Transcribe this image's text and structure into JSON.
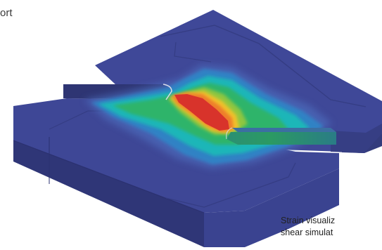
{
  "fragment_text": "ort",
  "caption": {
    "line1": "Strain visualiz",
    "line2": "shear simulat"
  },
  "colors": {
    "plate_top": "#3e4796",
    "plate_side": "#343c80",
    "plate_front": "#3a4390",
    "contour_blue": "#2f86c7",
    "contour_cyan": "#1cb6b8",
    "contour_green": "#2eb46a",
    "contour_lime": "#8fc63f",
    "contour_yellow": "#f1c22a",
    "contour_orange": "#ee7d2a",
    "contour_red": "#d8332b"
  }
}
